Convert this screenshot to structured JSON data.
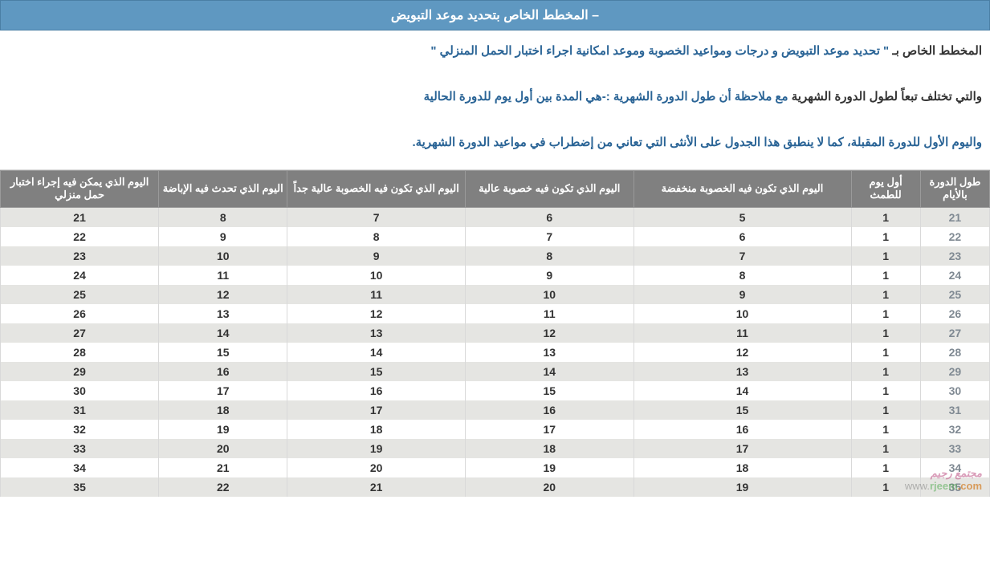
{
  "title_bar": "– المخطط الخاص بتحديد موعد التبويض",
  "description": {
    "line1_prefix": "المخطط الخاص بـ ",
    "line1_quoted": "\" تحديد موعد التبويض و درجات ومواعيد الخصوبة وموعد امكانية اجراء اختبار الحمل المنزلي \"",
    "line2_dark": "والتي تختلف تبعاً لطول الدورة الشهرية",
    "line2_blue": " مع ملاحظة أن طول الدورة الشهرية :-هي المدة بين أول يوم للدورة الحالية",
    "line3": "واليوم الأول للدورة المقبلة، كما لا ينطبق هذا الجدول على الأنثى التي تعاني من إضطراب في مواعيد الدورة الشهرية."
  },
  "table": {
    "columns": [
      "طول الدورة بالأيام",
      "أول يوم للطمث",
      "اليوم الذي تكون فيه الخصوبة منخفضة",
      "اليوم الذي تكون فيه خصوبة عالية",
      "اليوم الذي تكون فيه الخصوبة عالية جداً",
      "اليوم الذي تحدث فيه الإباضة",
      "اليوم الذي يمكن فيه إجراء اختبار حمل منزلي"
    ],
    "col_widths_pct": [
      7,
      7,
      22,
      17,
      18,
      13,
      16
    ],
    "rows": [
      [
        21,
        1,
        5,
        6,
        7,
        8,
        21
      ],
      [
        22,
        1,
        6,
        7,
        8,
        9,
        22
      ],
      [
        23,
        1,
        7,
        8,
        9,
        10,
        23
      ],
      [
        24,
        1,
        8,
        9,
        10,
        11,
        24
      ],
      [
        25,
        1,
        9,
        10,
        11,
        12,
        25
      ],
      [
        26,
        1,
        10,
        11,
        12,
        13,
        26
      ],
      [
        27,
        1,
        11,
        12,
        13,
        14,
        27
      ],
      [
        28,
        1,
        12,
        13,
        14,
        15,
        28
      ],
      [
        29,
        1,
        13,
        14,
        15,
        16,
        29
      ],
      [
        30,
        1,
        14,
        15,
        16,
        17,
        30
      ],
      [
        31,
        1,
        15,
        16,
        17,
        18,
        31
      ],
      [
        32,
        1,
        16,
        17,
        18,
        19,
        32
      ],
      [
        33,
        1,
        17,
        18,
        19,
        20,
        33
      ],
      [
        34,
        1,
        18,
        19,
        20,
        21,
        34
      ],
      [
        35,
        1,
        19,
        20,
        21,
        22,
        35
      ]
    ],
    "header_bg": "#808080",
    "header_fg": "#ffffff",
    "row_odd_bg": "#e5e5e2",
    "row_even_bg": "#ffffff",
    "cycle_len_color": "#808a93"
  },
  "watermark": {
    "line1": "مجتمع رجيم",
    "line2_www": "www.",
    "line2_rjeem": "rjeem",
    "line2_com": ".com"
  }
}
